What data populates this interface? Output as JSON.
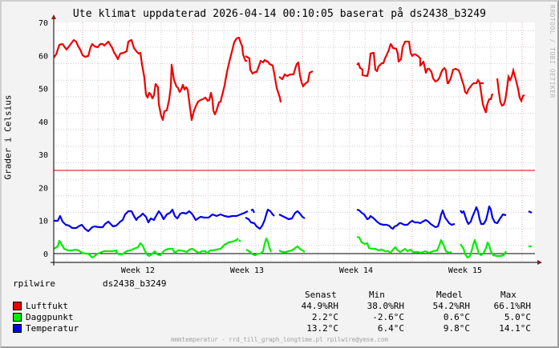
{
  "title": "Ute klimat uppdaterad 2026-04-14 00:10:05 baserat på ds2438_b3249",
  "watermark": "RRDTOOL / TOBI OETIKER",
  "host": {
    "name": "rpilwire",
    "sensor": "ds2438_b3249"
  },
  "legend": {
    "headers": [
      "Senast",
      "Min",
      "Medel",
      "Max"
    ],
    "items": [
      {
        "label": "Luftfukt",
        "color": "#ee0000",
        "senast": "44.9%RH",
        "min": "38.0%RH",
        "medel": "54.2%RH",
        "max": "66.1%RH"
      },
      {
        "label": "Daggpunkt",
        "color": "#00ee00",
        "senast": "2.2°C",
        "min": "-2.6°C",
        "medel": "0.6°C",
        "max": "5.0°C"
      },
      {
        "label": "Temperatur",
        "color": "#0000ee",
        "senast": "13.2°C",
        "min": "6.4°C",
        "medel": "9.8°C",
        "max": "14.1°C"
      }
    ]
  },
  "footer": "mmmtemperatur - rrd_till_graph_longtime.pl rpilwire@ymse.com",
  "colors": {
    "background": "#f3f3f3",
    "plot_bg": "#ffffff",
    "grid_minor": "#cccccc",
    "grid_major": "#e6a0a0",
    "threshold": "#cc0000",
    "axis": "#000000"
  },
  "chart_data": {
    "type": "line",
    "title": "Ute klimat uppdaterad 2026-04-14 00:10:05 baserat på ds2438_b3249",
    "xlabel": "",
    "ylabel": "Grader i Celsius",
    "ylim": [
      -2,
      70
    ],
    "yticks": [
      0,
      10,
      20,
      30,
      40,
      50,
      60,
      70
    ],
    "x_tick_labels": [
      "Week 12",
      "Week 13",
      "Week 14",
      "Week 15"
    ],
    "grid": true,
    "hline": {
      "value": 25,
      "color": "#cc0000"
    },
    "x_days": 31,
    "series": [
      {
        "name": "Luftfukt",
        "color": "#ee0000",
        "unit": "%RH",
        "points": [
          [
            0,
            59
          ],
          [
            0.5,
            61
          ],
          [
            1,
            63.5
          ],
          [
            1.5,
            62
          ],
          [
            2,
            63
          ],
          [
            2.5,
            65
          ],
          [
            3,
            64
          ],
          [
            3.5,
            59
          ],
          [
            4,
            58
          ],
          [
            4.5,
            62
          ],
          [
            5,
            61
          ],
          [
            5.5,
            62
          ],
          [
            6,
            60
          ],
          [
            6.5,
            64
          ],
          [
            7,
            57
          ],
          [
            7.5,
            56
          ],
          [
            8,
            61
          ],
          [
            8.5,
            60
          ],
          [
            9,
            62
          ],
          [
            9.5,
            63
          ],
          [
            10,
            62
          ],
          [
            10.5,
            54
          ],
          [
            11,
            52
          ],
          [
            11.5,
            53
          ],
          [
            12,
            58
          ],
          [
            12.5,
            59
          ],
          [
            13,
            61
          ],
          [
            13.5,
            47
          ],
          [
            14,
            48
          ],
          [
            14.5,
            46
          ],
          [
            15,
            40
          ],
          [
            15.5,
            44
          ],
          [
            16,
            48
          ],
          [
            16.5,
            42
          ],
          [
            17,
            45
          ],
          [
            17.5,
            52
          ],
          [
            18,
            51
          ],
          [
            18.5,
            48
          ],
          [
            19,
            40
          ],
          [
            19.5,
            44
          ],
          [
            20,
            48
          ],
          [
            20.5,
            46
          ],
          [
            21,
            52
          ],
          [
            21.5,
            53
          ],
          [
            22,
            47
          ],
          [
            22.5,
            41
          ],
          [
            23,
            44
          ],
          [
            23.5,
            47
          ],
          [
            24,
            52
          ],
          [
            24.5,
            56
          ],
          [
            25,
            59
          ],
          [
            25.5,
            62
          ],
          [
            26,
            64
          ],
          [
            26.5,
            65
          ],
          [
            27,
            64
          ],
          [
            27.5,
            60
          ],
          [
            28,
            57
          ]
        ],
        "segments_note": "approximate shape; gaps present"
      },
      {
        "name": "Daggpunkt",
        "color": "#00ee00",
        "unit": "°C",
        "range_observed": [
          -2.6,
          5.0
        ]
      },
      {
        "name": "Temperatur",
        "color": "#0000ee",
        "unit": "°C",
        "range_observed": [
          6.4,
          14.1
        ]
      }
    ]
  }
}
